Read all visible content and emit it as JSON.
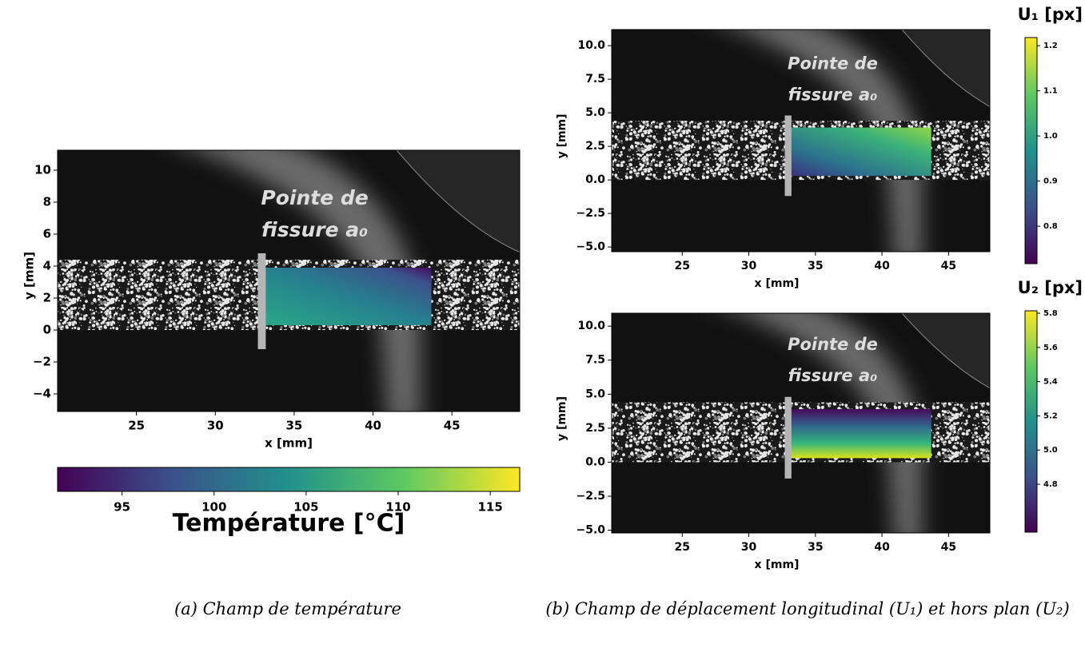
{
  "panels": [
    {
      "xlabel": "x [mm]",
      "ylabel": "y [mm]",
      "xlim": [
        20,
        49.3
      ],
      "ylim": [
        -5.1,
        11.25
      ],
      "xticks": [
        25,
        30,
        35,
        40,
        45
      ],
      "yticks": [
        {
          "value": -4,
          "label": "−4"
        },
        {
          "value": -2,
          "label": "−2"
        },
        0,
        2,
        4,
        6,
        8,
        10
      ],
      "annotation": [
        "Pointe de",
        "fissure a₀"
      ],
      "colorbar": {
        "title": "Température [°C]",
        "lim": [
          91.5,
          116.6
        ],
        "ticks": [
          95,
          100,
          105,
          110,
          115
        ]
      }
    },
    {
      "xlabel": "x [mm]",
      "ylabel": "y [mm]",
      "xlim": [
        19.7,
        48.1
      ],
      "ylim": [
        -5.35,
        11.2
      ],
      "xticks": [
        25,
        30,
        35,
        40,
        45
      ],
      "yticks": [
        {
          "value": -5,
          "label": "−5.0"
        },
        {
          "value": -2.5,
          "label": "−2.5"
        },
        {
          "value": 0,
          "label": "0.0"
        },
        2.5,
        {
          "value": 5,
          "label": "5.0"
        },
        7.5,
        {
          "value": 10,
          "label": "10.0"
        }
      ],
      "annotation": [
        "Pointe de",
        "fissure a₀"
      ],
      "colorbar": {
        "title": "U₁ [px]",
        "lim": [
          0.717,
          1.218
        ],
        "ticks": [
          0.8,
          0.9,
          {
            "value": 1,
            "label": "1.0"
          },
          1.1,
          1.2
        ]
      }
    },
    {
      "xlabel": "x [mm]",
      "ylabel": "y [mm]",
      "xlim": [
        19.7,
        48.1
      ],
      "ylim": [
        -5.2,
        10.95
      ],
      "xticks": [
        25,
        30,
        35,
        40,
        45
      ],
      "yticks": [
        {
          "value": -5,
          "label": "−5.0"
        },
        {
          "value": -2.5,
          "label": "−2.5"
        },
        {
          "value": 0,
          "label": "0.0"
        },
        2.5,
        {
          "value": 5,
          "label": "5.0"
        },
        7.5,
        {
          "value": 10,
          "label": "10.0"
        }
      ],
      "annotation": [
        "Pointe de",
        "fissure a₀"
      ],
      "colorbar": {
        "title": "U₂ [px]",
        "lim": [
          4.52,
          5.814
        ],
        "ticks": [
          4.8,
          {
            "value": 5,
            "label": "5.0"
          },
          5.2,
          5.4,
          5.6,
          5.8
        ]
      }
    }
  ],
  "captions": [
    "(a) Champ de température",
    "(b) Champ de déplacement longitudinal (U₁) et hors plan (U₂)"
  ]
}
